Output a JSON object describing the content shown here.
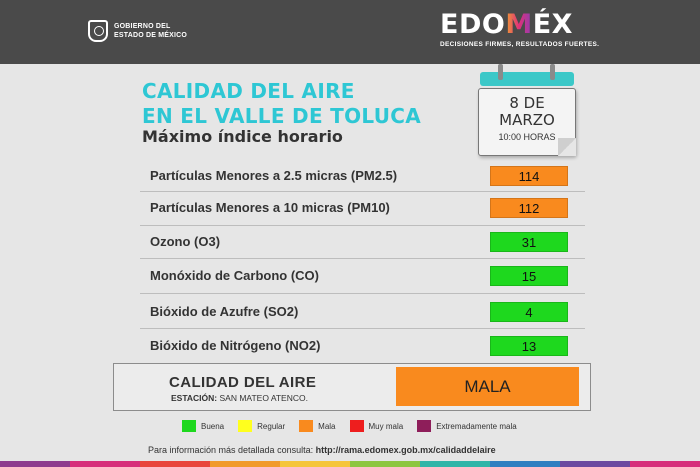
{
  "header": {
    "gov_line1": "GOBIERNO DEL",
    "gov_line2": "ESTADO DE MÉXICO",
    "brand_prefix": "EDO",
    "brand_m": "M",
    "brand_suffix": "ÉX",
    "brand_tagline": "DECISIONES FIRMES, RESULTADOS FUERTES."
  },
  "title": {
    "line1": "CALIDAD DEL AIRE",
    "line2": "EN EL VALLE DE TOLUCA",
    "subtitle": "Máximo índice horario"
  },
  "calendar": {
    "day": "8 DE",
    "month": "MARZO",
    "time": "10:00 HORAS"
  },
  "pollutants": [
    {
      "label": "Partículas Menores a 2.5 micras (PM2.5)",
      "value": "114",
      "color": "#f98a1e"
    },
    {
      "label": "Partículas Menores a 10 micras (PM10)",
      "value": "112",
      "color": "#f98a1e"
    },
    {
      "label": "Ozono (O3)",
      "value": "31",
      "color": "#1ed81e"
    },
    {
      "label": "Monóxido de Carbono (CO)",
      "value": "15",
      "color": "#1ed81e"
    },
    {
      "label": "Bióxido de Azufre (SO2)",
      "value": "4",
      "color": "#1ed81e"
    },
    {
      "label": "Bióxido de Nitrógeno (NO2)",
      "value": "13",
      "color": "#1ed81e"
    }
  ],
  "summary": {
    "title": "CALIDAD DEL AIRE",
    "station_label": "ESTACIÓN:",
    "station_name": "SAN MATEO ATENCO.",
    "result": "MALA",
    "result_color": "#f98a1e"
  },
  "legend": [
    {
      "label": "Buena",
      "color": "#1ed81e"
    },
    {
      "label": "Regular",
      "color": "#ffff1e"
    },
    {
      "label": "Mala",
      "color": "#f98a1e"
    },
    {
      "label": "Muy mala",
      "color": "#ee1e1e"
    },
    {
      "label": "Extremadamente mala",
      "color": "#8e1e5a"
    }
  ],
  "footer": {
    "prefix": "Para información más detallada consulta:",
    "url": "http://rama.edomex.gob.mx/calidaddelaire"
  },
  "colors": {
    "topbar": "#4a4a4a",
    "title": "#2ec7d4",
    "calendar_bar": "#3bc8c8",
    "stripe": [
      "#8e3b8e",
      "#d62f7a",
      "#e8453c",
      "#f19a2a",
      "#f5c53a",
      "#8dc63f",
      "#2fb5a8",
      "#2f7fc1",
      "#6b4aa0",
      "#d62f7a"
    ]
  }
}
